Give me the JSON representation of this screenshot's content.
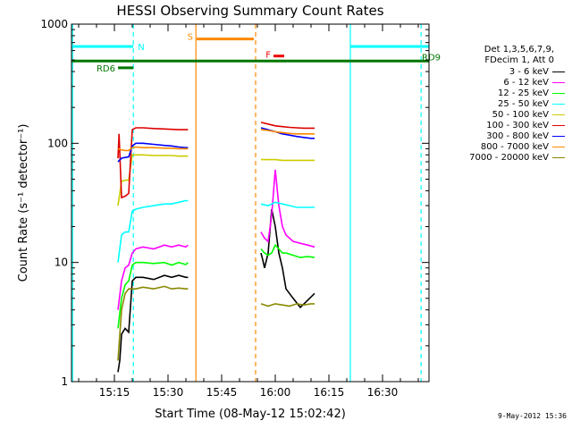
{
  "chart_data": {
    "type": "line",
    "title": "HESSI Observing Summary Count Rates",
    "xlabel": "Start Time (08-May-12 15:02:42)",
    "ylabel": "Count Rate (s⁻¹ detector⁻¹)",
    "ylog": true,
    "ylim": [
      1,
      1000
    ],
    "xlim_min": [
      3,
      103
    ],
    "x_ticks": [
      {
        "label": "15:15",
        "min": 15
      },
      {
        "label": "15:30",
        "min": 30
      },
      {
        "label": "15:45",
        "min": 45
      },
      {
        "label": "16:00",
        "min": 60
      },
      {
        "label": "16:15",
        "min": 75
      },
      {
        "label": "16:30",
        "min": 90
      }
    ],
    "y_ticks": [
      {
        "label": "1",
        "v": 1
      },
      {
        "label": "10",
        "v": 10
      },
      {
        "label": "100",
        "v": 100
      },
      {
        "label": "1000",
        "v": 1000
      }
    ],
    "legend_header": [
      "Det 1,3,5,6,7,9,",
      "FDecim 1, Att 0"
    ],
    "series": [
      {
        "name": "3 - 6 keV",
        "color": "#000000",
        "x": [
          16,
          16.5,
          17,
          18,
          19,
          20,
          21,
          23,
          26,
          29,
          31,
          33,
          35,
          35.6,
          56,
          56.5,
          57,
          58,
          59,
          60,
          61,
          62,
          63,
          65,
          67,
          69,
          71
        ],
        "y": [
          1.2,
          1.5,
          2.5,
          2.8,
          2.6,
          7,
          7.5,
          7.5,
          7.2,
          7.8,
          7.5,
          7.8,
          7.5,
          7.5,
          12,
          10.5,
          9,
          12,
          28,
          20,
          12,
          9,
          6,
          5,
          4.2,
          4.8,
          5.5
        ]
      },
      {
        "name": "6 - 12 keV",
        "color": "#ff00ff",
        "x": [
          16,
          17,
          18,
          19,
          20,
          21,
          23,
          26,
          29,
          31,
          33,
          35,
          35.6,
          56,
          57,
          58,
          59,
          60,
          61,
          62,
          63,
          65,
          67,
          69,
          71
        ],
        "y": [
          4,
          7,
          9,
          9.5,
          12,
          13,
          13.5,
          13,
          14,
          13.5,
          14,
          13.5,
          14,
          18,
          16,
          15,
          25,
          60,
          30,
          20,
          17,
          15,
          14.5,
          14,
          13.5
        ]
      },
      {
        "name": "12 - 25 keV",
        "color": "#00ff00",
        "x": [
          16,
          17,
          18,
          19,
          20,
          21,
          23,
          26,
          29,
          31,
          33,
          35,
          35.6,
          56,
          57,
          58,
          59,
          60,
          61,
          62,
          63,
          65,
          67,
          69,
          71
        ],
        "y": [
          2.8,
          5,
          6.5,
          7,
          9.5,
          10,
          10,
          9.8,
          10,
          9.5,
          10,
          9.6,
          10,
          13,
          12,
          11.5,
          12,
          14,
          13,
          12,
          12,
          11.5,
          11,
          11.2,
          11
        ]
      },
      {
        "name": "25 - 50 keV",
        "color": "#00ffff",
        "x": [
          16,
          17,
          18,
          19,
          20,
          21,
          23,
          26,
          29,
          31,
          33,
          35,
          35.6,
          56,
          58,
          60,
          62,
          64,
          66,
          68,
          70,
          71
        ],
        "y": [
          10,
          17,
          18,
          18,
          27,
          28,
          29,
          30,
          31,
          31,
          32,
          33,
          33,
          31,
          30,
          32,
          31,
          30,
          29,
          29,
          29,
          29
        ]
      },
      {
        "name": "50 - 100 keV",
        "color": "#cccc00",
        "x": [
          16,
          17,
          18,
          19,
          20,
          21,
          23,
          26,
          29,
          31,
          33,
          35,
          35.6,
          56,
          58,
          60,
          62,
          64,
          66,
          68,
          70,
          71
        ],
        "y": [
          30,
          48,
          49,
          49,
          80,
          80,
          80,
          79,
          79,
          79,
          78,
          78,
          78,
          73,
          73,
          73,
          72,
          72,
          72,
          72,
          72,
          72
        ]
      },
      {
        "name": "100 - 300 keV",
        "color": "#dd0000",
        "x": [
          16,
          16.3,
          17,
          18,
          19,
          20,
          21,
          23,
          26,
          29,
          31,
          33,
          35,
          35.6,
          56,
          58,
          60,
          62,
          64,
          66,
          68,
          70,
          71
        ],
        "y": [
          75,
          120,
          35,
          36,
          38,
          130,
          135,
          135,
          133,
          132,
          131,
          130,
          130,
          130,
          150,
          145,
          140,
          138,
          136,
          135,
          134,
          134,
          134
        ]
      },
      {
        "name": "300 - 800 keV",
        "color": "#0000ff",
        "x": [
          16,
          17,
          18,
          19,
          20,
          21,
          23,
          26,
          29,
          31,
          33,
          35,
          35.6,
          56,
          58,
          60,
          62,
          64,
          66,
          68,
          70,
          71
        ],
        "y": [
          70,
          75,
          76,
          77,
          95,
          100,
          100,
          98,
          96,
          95,
          93,
          92,
          92,
          135,
          130,
          125,
          120,
          117,
          114,
          112,
          110,
          110
        ]
      },
      {
        "name": "800 - 7000 keV",
        "color": "#ff8800",
        "x": [
          16,
          17,
          18,
          19,
          20,
          21,
          23,
          26,
          29,
          31,
          33,
          35,
          35.6,
          56,
          58,
          60,
          62,
          64,
          66,
          68,
          70,
          71
        ],
        "y": [
          90,
          88,
          87,
          87,
          92,
          93,
          92,
          92,
          91,
          91,
          90,
          90,
          90,
          130,
          128,
          125,
          123,
          121,
          120,
          120,
          120,
          120
        ]
      },
      {
        "name": "7000 - 20000 keV",
        "color": "#888800",
        "x": [
          16,
          17,
          18,
          19,
          20,
          21,
          23,
          26,
          29,
          31,
          33,
          35,
          35.6,
          56,
          58,
          60,
          62,
          64,
          66,
          68,
          70,
          71
        ],
        "y": [
          1.5,
          4,
          5.5,
          6,
          6,
          6,
          6.2,
          6,
          6.3,
          6,
          6.1,
          6,
          6,
          4.5,
          4.3,
          4.5,
          4.4,
          4.3,
          4.5,
          4.4,
          4.5,
          4.5
        ]
      }
    ],
    "vertical_lines": [
      {
        "min": 3.3,
        "color": "#00ffff",
        "style": "solid"
      },
      {
        "min": 20.3,
        "color": "#00ffff",
        "style": "dashed"
      },
      {
        "min": 37.8,
        "color": "#ff8800",
        "style": "solid"
      },
      {
        "min": 54.5,
        "color": "#ff8800",
        "style": "dashed"
      },
      {
        "min": 81,
        "color": "#00ffff",
        "style": "solid"
      },
      {
        "min": 100.8,
        "color": "#00ffff",
        "style": "dashed"
      }
    ],
    "bars": [
      {
        "label": "N",
        "x0": 3,
        "x1": 20.3,
        "y": 650,
        "color": "#00ffff"
      },
      {
        "label": "",
        "x0": 81,
        "x1": 103,
        "y": 650,
        "color": "#00ffff"
      },
      {
        "label": "S",
        "x0": 38,
        "x1": 54,
        "y": 750,
        "color": "#ff8800"
      },
      {
        "label": "F",
        "x0": 59.5,
        "x1": 62.5,
        "y": 540,
        "color": "#ee0000"
      },
      {
        "label": "RD9",
        "x0": 3,
        "x1": 103,
        "y": 490,
        "color": "#007700"
      },
      {
        "label": "RD6",
        "x0": 16,
        "x1": 20.3,
        "y": 430,
        "color": "#007700"
      }
    ]
  },
  "timestamp": "9-May-2012 15:36"
}
